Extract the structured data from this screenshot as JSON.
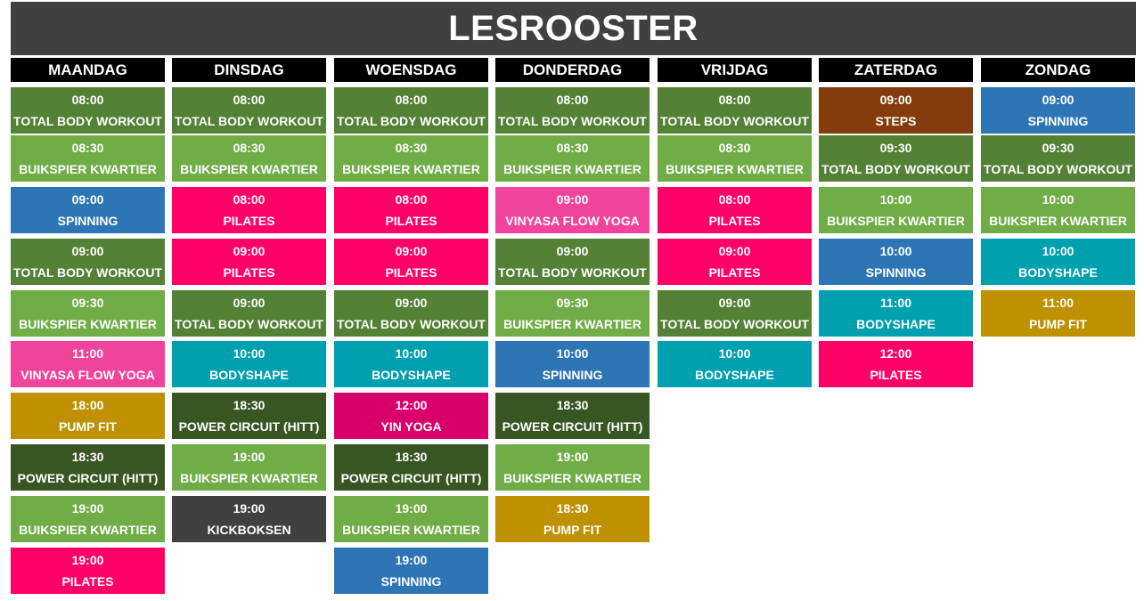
{
  "title": "LESROOSTER",
  "colors": {
    "title_bar": "#404040",
    "header": "#000000",
    "TOTAL BODY WORKOUT": "#538135",
    "BUIKSPIER KWARTIER": "#70ad47",
    "SPINNING": "#2e75b6",
    "PILATES": "#ff0066",
    "VINYASA FLOW YOGA": "#f0439b",
    "YIN YOGA": "#d9006c",
    "BODYSHAPE": "#00a0b0",
    "PUMP FIT": "#bf9000",
    "POWER CIRCUIT (HITT)": "#375623",
    "KICKBOKSEN": "#404040",
    "STEPS": "#843c0c"
  },
  "days": [
    {
      "name": "MAANDAG",
      "classes": [
        {
          "time": "08:00",
          "name": "TOTAL BODY WORKOUT"
        },
        {
          "time": "08:30",
          "name": "BUIKSPIER KWARTIER"
        },
        {
          "time": "09:00",
          "name": "SPINNING"
        },
        {
          "time": "09:00",
          "name": "TOTAL BODY WORKOUT"
        },
        {
          "time": "09:30",
          "name": "BUIKSPIER KWARTIER"
        },
        {
          "time": "11:00",
          "name": "VINYASA FLOW YOGA"
        },
        {
          "time": "18:00",
          "name": "PUMP FIT"
        },
        {
          "time": "18:30",
          "name": "POWER CIRCUIT (HITT)"
        },
        {
          "time": "19:00",
          "name": "BUIKSPIER KWARTIER"
        },
        {
          "time": "19:00",
          "name": "PILATES"
        }
      ]
    },
    {
      "name": "DINSDAG",
      "classes": [
        {
          "time": "08:00",
          "name": "TOTAL BODY WORKOUT"
        },
        {
          "time": "08:30",
          "name": "BUIKSPIER KWARTIER"
        },
        {
          "time": "08:00",
          "name": "PILATES"
        },
        {
          "time": "09:00",
          "name": "PILATES"
        },
        {
          "time": "09:00",
          "name": "TOTAL BODY WORKOUT"
        },
        {
          "time": "10:00",
          "name": "BODYSHAPE"
        },
        {
          "time": "18:30",
          "name": "POWER CIRCUIT (HITT)"
        },
        {
          "time": "19:00",
          "name": "BUIKSPIER KWARTIER"
        },
        {
          "time": "19:00",
          "name": "KICKBOKSEN"
        }
      ]
    },
    {
      "name": "WOENSDAG",
      "classes": [
        {
          "time": "08:00",
          "name": "TOTAL BODY WORKOUT"
        },
        {
          "time": "08:30",
          "name": "BUIKSPIER KWARTIER"
        },
        {
          "time": "08:00",
          "name": "PILATES"
        },
        {
          "time": "09:00",
          "name": "PILATES"
        },
        {
          "time": "09:00",
          "name": "TOTAL BODY WORKOUT"
        },
        {
          "time": "10:00",
          "name": "BODYSHAPE"
        },
        {
          "time": "12:00",
          "name": "YIN YOGA"
        },
        {
          "time": "18:30",
          "name": "POWER CIRCUIT (HITT)"
        },
        {
          "time": "19:00",
          "name": "BUIKSPIER KWARTIER"
        },
        {
          "time": "19:00",
          "name": "SPINNING"
        }
      ]
    },
    {
      "name": "DONDERDAG",
      "classes": [
        {
          "time": "08:00",
          "name": "TOTAL BODY WORKOUT"
        },
        {
          "time": "08:30",
          "name": "BUIKSPIER KWARTIER"
        },
        {
          "time": "09:00",
          "name": "VINYASA FLOW YOGA"
        },
        {
          "time": "09:00",
          "name": "TOTAL BODY WORKOUT"
        },
        {
          "time": "09:30",
          "name": "BUIKSPIER KWARTIER"
        },
        {
          "time": "10:00",
          "name": "SPINNING"
        },
        {
          "time": "18:30",
          "name": "POWER CIRCUIT (HITT)"
        },
        {
          "time": "19:00",
          "name": "BUIKSPIER KWARTIER"
        },
        {
          "time": "18:30",
          "name": "PUMP FIT"
        }
      ]
    },
    {
      "name": "VRIJDAG",
      "classes": [
        {
          "time": "08:00",
          "name": "TOTAL BODY WORKOUT"
        },
        {
          "time": "08:30",
          "name": "BUIKSPIER KWARTIER"
        },
        {
          "time": "08:00",
          "name": "PILATES"
        },
        {
          "time": "09:00",
          "name": "PILATES"
        },
        {
          "time": "09:00",
          "name": "TOTAL BODY WORKOUT"
        },
        {
          "time": "10:00",
          "name": "BODYSHAPE"
        }
      ]
    },
    {
      "name": "ZATERDAG",
      "classes": [
        {
          "time": "09:00",
          "name": "STEPS"
        },
        {
          "time": "09:30",
          "name": "TOTAL BODY WORKOUT"
        },
        {
          "time": "10:00",
          "name": "BUIKSPIER KWARTIER"
        },
        {
          "time": "10:00",
          "name": "SPINNING"
        },
        {
          "time": "11:00",
          "name": "BODYSHAPE"
        },
        {
          "time": "12:00",
          "name": "PILATES"
        }
      ]
    },
    {
      "name": "ZONDAG",
      "classes": [
        {
          "time": "09:00",
          "name": "SPINNING"
        },
        {
          "time": "09:30",
          "name": "TOTAL BODY WORKOUT"
        },
        {
          "time": "10:00",
          "name": "BUIKSPIER KWARTIER"
        },
        {
          "time": "10:00",
          "name": "BODYSHAPE"
        },
        {
          "time": "11:00",
          "name": "PUMP FIT"
        }
      ]
    }
  ]
}
